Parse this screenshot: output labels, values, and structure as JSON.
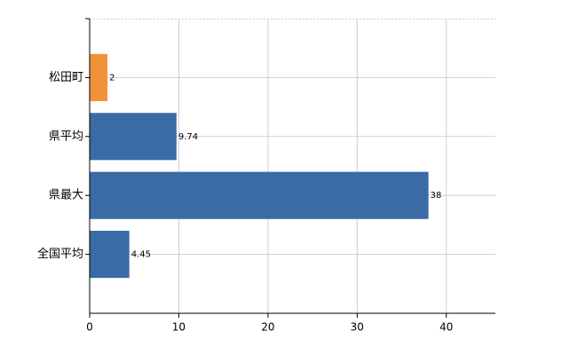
{
  "chart_data": {
    "type": "barh",
    "categories": [
      "松田町",
      "県平均",
      "県最大",
      "全国平均"
    ],
    "values": [
      2,
      9.74,
      38,
      4.45
    ],
    "colors": [
      "#f0923a",
      "#3a6ba5",
      "#3a6ba5",
      "#3a6ba5"
    ],
    "xlim": [
      0,
      45.5
    ],
    "xticks": [
      0,
      10,
      20,
      30,
      40
    ],
    "grid": true
  }
}
